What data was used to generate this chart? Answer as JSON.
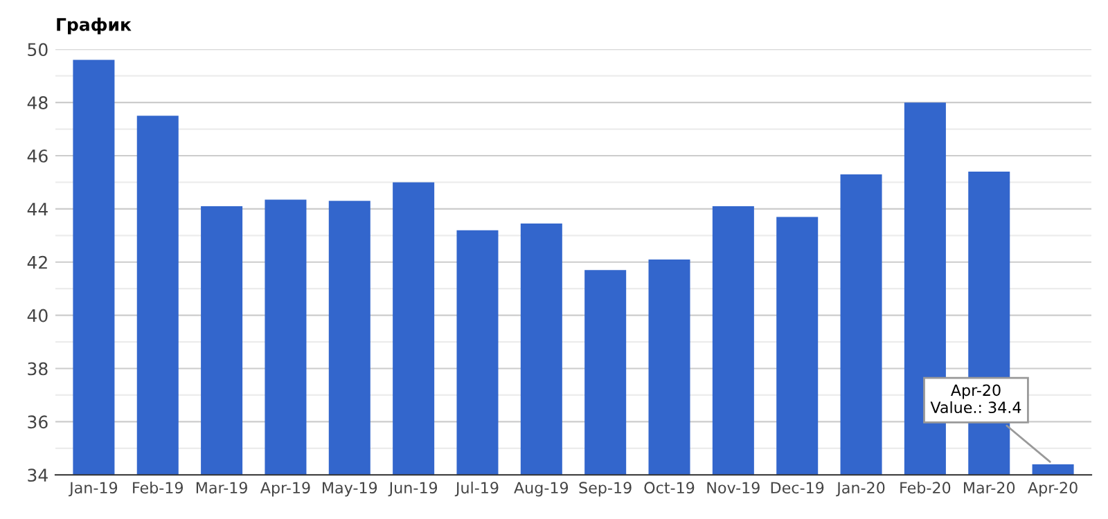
{
  "chart_data": {
    "type": "bar",
    "title": "График",
    "categories": [
      "Jan-19",
      "Feb-19",
      "Mar-19",
      "Apr-19",
      "May-19",
      "Jun-19",
      "Jul-19",
      "Aug-19",
      "Sep-19",
      "Oct-19",
      "Nov-19",
      "Dec-19",
      "Jan-20",
      "Feb-20",
      "Mar-20",
      "Apr-20"
    ],
    "values": [
      49.6,
      47.5,
      44.1,
      44.35,
      44.3,
      45.0,
      43.2,
      43.45,
      41.7,
      42.1,
      44.1,
      43.7,
      45.3,
      48.0,
      45.4,
      34.4
    ],
    "color": "#3366cc",
    "ylim": [
      34,
      50
    ],
    "yticks": [
      34,
      {
        "value": 35,
        "label": null
      },
      36,
      {
        "value": 37,
        "label": null
      },
      38,
      {
        "value": 39,
        "label": null
      },
      40,
      {
        "value": 41,
        "label": null
      },
      42,
      {
        "value": 43,
        "label": null
      },
      44,
      {
        "value": 45,
        "label": null
      },
      46,
      {
        "value": 47,
        "label": null
      },
      48,
      {
        "value": 49,
        "label": null
      },
      50
    ],
    "grid": "y",
    "annotations": [
      {
        "text": "Apr-20\nValue.: 34.4",
        "x": "Apr-20",
        "y": 34.4
      }
    ]
  }
}
